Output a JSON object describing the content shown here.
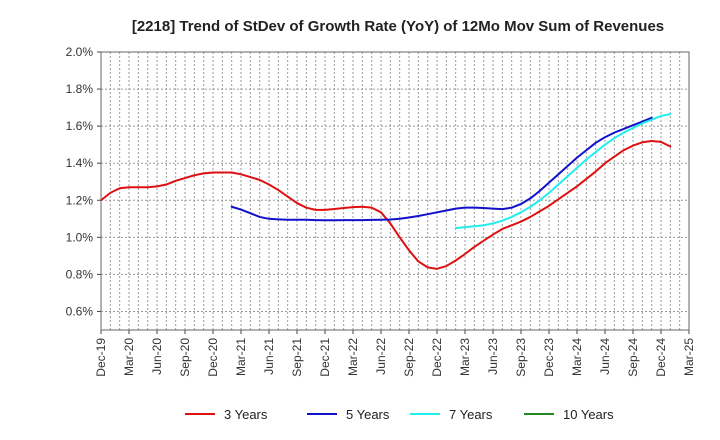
{
  "chart_data": {
    "type": "line",
    "title": "[2218]  Trend of StDev of Growth Rate (YoY) of 12Mo Mov Sum of Revenues",
    "xlabel": "",
    "ylabel": "",
    "ylim": [
      0.5,
      2.0
    ],
    "y_ticks": [
      0.6,
      0.8,
      1.0,
      1.2,
      1.4,
      1.6,
      1.8,
      2.0
    ],
    "y_tick_labels": [
      "0.6%",
      "0.8%",
      "1.0%",
      "1.2%",
      "1.4%",
      "1.6%",
      "1.8%",
      "2.0%"
    ],
    "x_tick_labels": [
      "Dec-19",
      "Mar-20",
      "Jun-20",
      "Sep-20",
      "Dec-20",
      "Mar-21",
      "Jun-21",
      "Sep-21",
      "Dec-21",
      "Mar-22",
      "Jun-22",
      "Sep-22",
      "Dec-22",
      "Mar-23",
      "Jun-23",
      "Sep-23",
      "Dec-23",
      "Mar-24",
      "Jun-24",
      "Sep-24",
      "Dec-24",
      "Mar-25"
    ],
    "grid": true,
    "legend_position": "bottom",
    "series": [
      {
        "name": "3 Years",
        "color": "#dd1111",
        "start_index": 0,
        "values": [
          1.2,
          1.24,
          1.265,
          1.27,
          1.27,
          1.27,
          1.275,
          1.285,
          1.305,
          1.32,
          1.335,
          1.345,
          1.35,
          1.35,
          1.35,
          1.34,
          1.325,
          1.31,
          1.285,
          1.255,
          1.22,
          1.185,
          1.16,
          1.148,
          1.148,
          1.153,
          1.158,
          1.163,
          1.165,
          1.16,
          1.135,
          1.075,
          1.0,
          0.93,
          0.87,
          0.838,
          0.83,
          0.845,
          0.875,
          0.91,
          0.948,
          0.982,
          1.015,
          1.045,
          1.065,
          1.085,
          1.11,
          1.14,
          1.17,
          1.205,
          1.24,
          1.275,
          1.315,
          1.355,
          1.4,
          1.435,
          1.47,
          1.495,
          1.513,
          1.52,
          1.515,
          1.49
        ]
      },
      {
        "name": "5 Years",
        "color": "#1111cc",
        "start_index": 14,
        "values": [
          1.165,
          1.15,
          1.13,
          1.11,
          1.1,
          1.097,
          1.095,
          1.095,
          1.095,
          1.093,
          1.092,
          1.092,
          1.093,
          1.093,
          1.093,
          1.094,
          1.095,
          1.096,
          1.1,
          1.107,
          1.115,
          1.125,
          1.135,
          1.145,
          1.155,
          1.16,
          1.16,
          1.158,
          1.155,
          1.152,
          1.16,
          1.18,
          1.21,
          1.25,
          1.295,
          1.34,
          1.385,
          1.43,
          1.47,
          1.51,
          1.54,
          1.565,
          1.585,
          1.605,
          1.625,
          1.645
        ]
      },
      {
        "name": "7 Years",
        "color": "#22eeee",
        "start_index": 38,
        "values": [
          1.05,
          1.055,
          1.06,
          1.065,
          1.075,
          1.09,
          1.11,
          1.135,
          1.165,
          1.2,
          1.24,
          1.285,
          1.33,
          1.375,
          1.42,
          1.46,
          1.5,
          1.535,
          1.565,
          1.59,
          1.615,
          1.635,
          1.655,
          1.665
        ]
      },
      {
        "name": "10 Years",
        "color": "#228822",
        "start_index": 0,
        "values": []
      }
    ]
  }
}
